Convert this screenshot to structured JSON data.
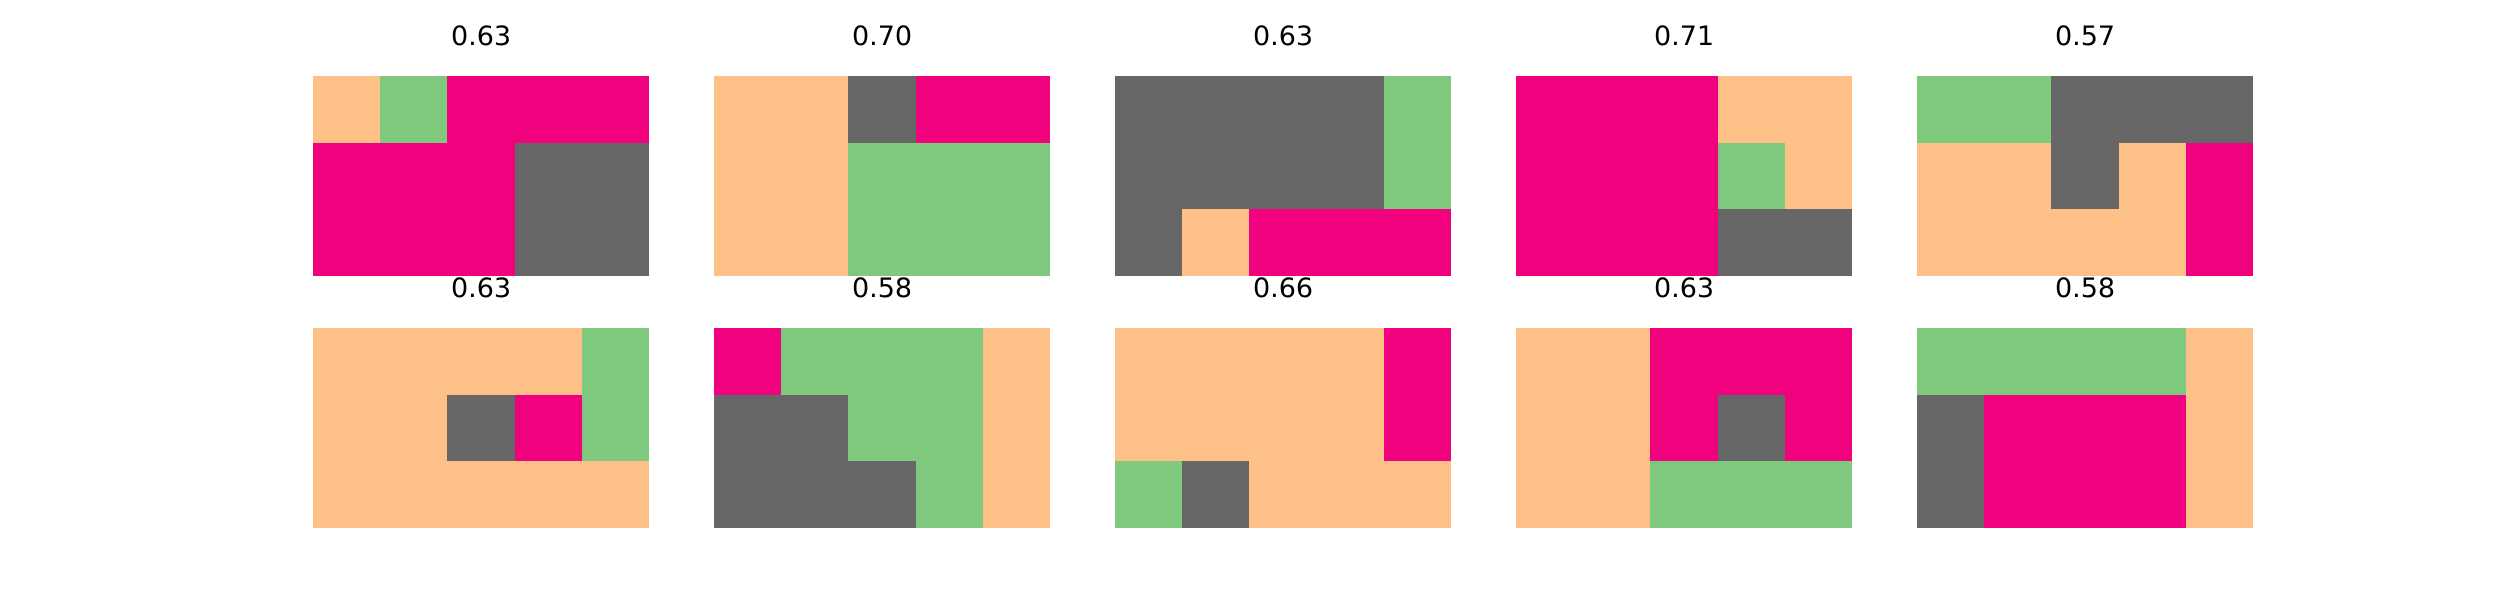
{
  "palette": {
    "0": "#fdc086",
    "1": "#7fc97f",
    "2": "#f0027f",
    "3": "#666666"
  },
  "chart_data": {
    "type": "heatmap",
    "rows": 2,
    "cols": 5,
    "panels": [
      {
        "title": "0.63",
        "grid": [
          [
            0,
            1,
            2,
            2,
            2
          ],
          [
            2,
            2,
            2,
            3,
            3
          ],
          [
            2,
            2,
            2,
            3,
            3
          ]
        ]
      },
      {
        "title": "0.70",
        "grid": [
          [
            0,
            0,
            3,
            2,
            2
          ],
          [
            0,
            0,
            1,
            1,
            1
          ],
          [
            0,
            0,
            1,
            1,
            1
          ]
        ]
      },
      {
        "title": "0.63",
        "grid": [
          [
            3,
            3,
            3,
            3,
            1
          ],
          [
            3,
            3,
            3,
            3,
            1
          ],
          [
            3,
            0,
            2,
            2,
            2
          ]
        ]
      },
      {
        "title": "0.71",
        "grid": [
          [
            2,
            2,
            2,
            0,
            0
          ],
          [
            2,
            2,
            2,
            1,
            0
          ],
          [
            2,
            2,
            2,
            3,
            3
          ]
        ]
      },
      {
        "title": "0.57",
        "grid": [
          [
            1,
            1,
            3,
            3,
            3
          ],
          [
            0,
            0,
            3,
            0,
            2
          ],
          [
            0,
            0,
            0,
            0,
            2
          ]
        ]
      },
      {
        "title": "0.63",
        "grid": [
          [
            0,
            0,
            0,
            0,
            1
          ],
          [
            0,
            0,
            3,
            2,
            1
          ],
          [
            0,
            0,
            0,
            0,
            0
          ]
        ]
      },
      {
        "title": "0.58",
        "grid": [
          [
            2,
            1,
            1,
            1,
            0
          ],
          [
            3,
            3,
            1,
            1,
            0
          ],
          [
            3,
            3,
            3,
            1,
            0
          ]
        ]
      },
      {
        "title": "0.66",
        "grid": [
          [
            0,
            0,
            0,
            0,
            2
          ],
          [
            0,
            0,
            0,
            0,
            2
          ],
          [
            1,
            3,
            0,
            0,
            0
          ]
        ]
      },
      {
        "title": "0.63",
        "grid": [
          [
            0,
            0,
            2,
            2,
            2
          ],
          [
            0,
            0,
            2,
            3,
            2
          ],
          [
            0,
            0,
            1,
            1,
            1
          ]
        ]
      },
      {
        "title": "0.58",
        "grid": [
          [
            1,
            1,
            1,
            1,
            0
          ],
          [
            3,
            2,
            2,
            2,
            0
          ],
          [
            3,
            2,
            2,
            2,
            0
          ]
        ]
      }
    ]
  }
}
